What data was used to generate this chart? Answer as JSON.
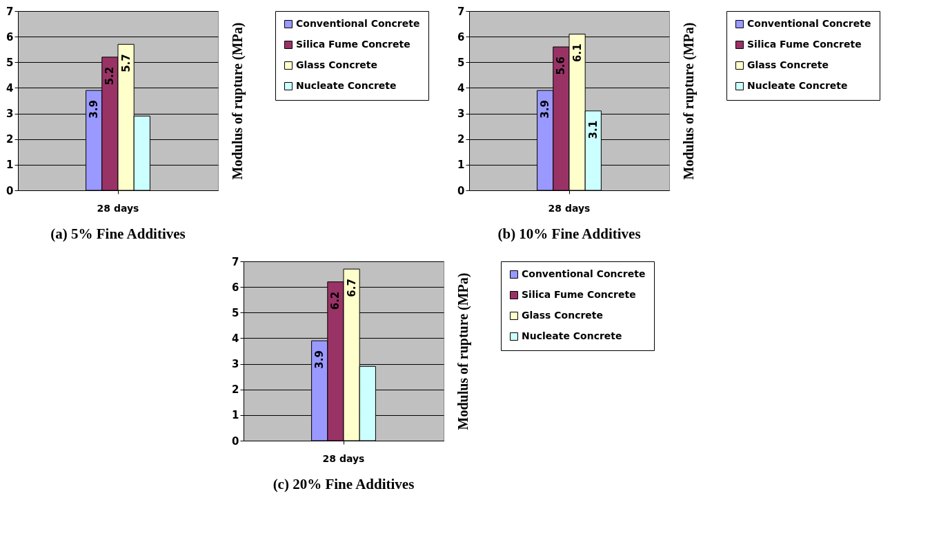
{
  "chart_data": [
    {
      "type": "bar",
      "title": "(a) 5% Fine Additives",
      "ylabel": "Modulus of rupture (MPa)",
      "categories": [
        "28 days"
      ],
      "ylim": [
        0,
        7
      ],
      "yticks": [
        0,
        1,
        2,
        3,
        4,
        5,
        6,
        7
      ],
      "grid": "y",
      "legend": "right",
      "series": [
        {
          "name": "Conventional Concrete",
          "color": "#9999ff",
          "values": [
            3.9
          ],
          "value_labels": [
            "3.9"
          ]
        },
        {
          "name": "Silica Fume Concrete",
          "color": "#993366",
          "values": [
            5.2
          ],
          "value_labels": [
            "5.2"
          ]
        },
        {
          "name": "Glass Concrete",
          "color": "#ffffcc",
          "values": [
            5.7
          ],
          "value_labels": [
            "5.7"
          ]
        },
        {
          "name": "Nucleate Concrete",
          "color": "#ccffff",
          "values": [
            2.9
          ],
          "value_labels": [
            null
          ]
        }
      ]
    },
    {
      "type": "bar",
      "title": "(b) 10% Fine Additives",
      "ylabel": "Modulus of rupture (MPa)",
      "categories": [
        "28 days"
      ],
      "ylim": [
        0,
        7
      ],
      "yticks": [
        0,
        1,
        2,
        3,
        4,
        5,
        6,
        7
      ],
      "grid": "y",
      "legend": "right",
      "series": [
        {
          "name": "Conventional Concrete",
          "color": "#9999ff",
          "values": [
            3.9
          ],
          "value_labels": [
            "3.9"
          ]
        },
        {
          "name": "Silica Fume Concrete",
          "color": "#993366",
          "values": [
            5.6
          ],
          "value_labels": [
            "5.6"
          ]
        },
        {
          "name": "Glass Concrete",
          "color": "#ffffcc",
          "values": [
            6.1
          ],
          "value_labels": [
            "6.1"
          ]
        },
        {
          "name": "Nucleate Concrete",
          "color": "#ccffff",
          "values": [
            3.1
          ],
          "value_labels": [
            "3.1"
          ]
        }
      ]
    },
    {
      "type": "bar",
      "title": "(c) 20% Fine Additives",
      "ylabel": "Modulus of rupture (MPa)",
      "categories": [
        "28 days"
      ],
      "ylim": [
        0,
        7
      ],
      "yticks": [
        0,
        1,
        2,
        3,
        4,
        5,
        6,
        7
      ],
      "grid": "y",
      "legend": "right",
      "series": [
        {
          "name": "Conventional Concrete",
          "color": "#9999ff",
          "values": [
            3.9
          ],
          "value_labels": [
            "3.9"
          ]
        },
        {
          "name": "Silica Fume Concrete",
          "color": "#993366",
          "values": [
            6.2
          ],
          "value_labels": [
            "6.2"
          ]
        },
        {
          "name": "Glass Concrete",
          "color": "#ffffcc",
          "values": [
            6.7
          ],
          "value_labels": [
            "6.7"
          ]
        },
        {
          "name": "Nucleate Concrete",
          "color": "#ccffff",
          "values": [
            2.9
          ],
          "value_labels": [
            null
          ]
        }
      ]
    }
  ]
}
